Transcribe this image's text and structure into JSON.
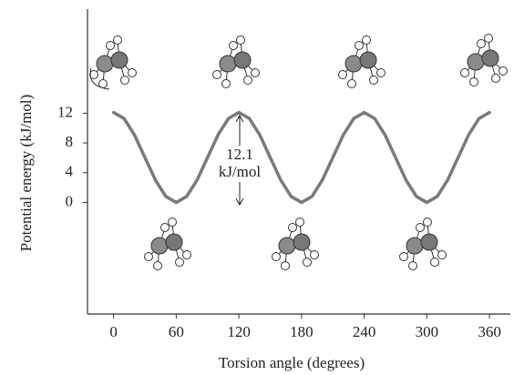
{
  "chart_data": {
    "type": "line",
    "x_label": "Torsion angle (degrees)",
    "y_label": "Potential energy (kJ/mol)",
    "annotation": [
      "12.1",
      "kJ/mol"
    ],
    "x": [
      0,
      10,
      20,
      30,
      40,
      50,
      60,
      70,
      80,
      90,
      100,
      110,
      120,
      130,
      140,
      150,
      160,
      170,
      180,
      190,
      200,
      210,
      220,
      230,
      240,
      250,
      260,
      270,
      280,
      290,
      300,
      310,
      320,
      330,
      340,
      350,
      360
    ],
    "series": [
      {
        "color": "#7a7a7a",
        "values": [
          12.1,
          11.29,
          9.08,
          6.05,
          3.03,
          0.81,
          0,
          0.81,
          3.03,
          6.05,
          9.08,
          11.29,
          12.1,
          11.29,
          9.08,
          6.05,
          3.03,
          0.81,
          0,
          0.81,
          3.03,
          6.05,
          9.08,
          11.29,
          12.1,
          11.29,
          9.08,
          6.05,
          3.03,
          0.81,
          0,
          0.81,
          3.03,
          6.05,
          9.08,
          11.29,
          12.1
        ]
      }
    ],
    "xlim": [
      -25,
      380
    ],
    "ylim": [
      -15,
      26
    ],
    "xticks": [
      0,
      60,
      120,
      180,
      240,
      300,
      360
    ],
    "yticks": [
      0,
      4,
      8,
      12
    ]
  }
}
